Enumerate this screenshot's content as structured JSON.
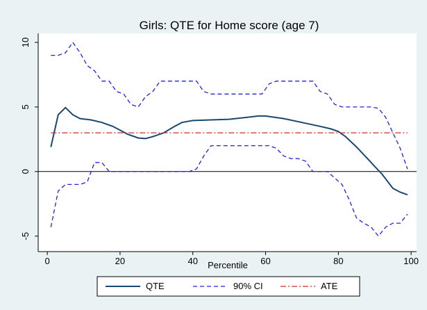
{
  "chart_data": {
    "type": "line",
    "title": "Girls: QTE for Home score (age 7)",
    "x_label": "Percentile",
    "xlim": [
      -2.5,
      101.5
    ],
    "xticks": [
      0,
      20,
      40,
      60,
      80,
      100
    ],
    "ylim": [
      -6.2,
      10.7
    ],
    "yticks": [
      -5,
      0,
      5,
      10
    ],
    "grid": false,
    "reference_line": 0,
    "legend": "bottom",
    "series": [
      {
        "name": "QTE",
        "color": "#1a476f",
        "dash": "solid",
        "x": [
          1,
          3,
          5,
          7,
          9,
          12,
          15,
          18,
          20,
          22,
          25,
          27,
          29,
          32,
          35,
          37,
          40,
          45,
          50,
          55,
          58,
          60,
          65,
          70,
          75,
          78,
          80,
          82,
          85,
          88,
          90,
          92,
          95,
          97,
          99
        ],
        "values": [
          1.9,
          4.4,
          4.95,
          4.4,
          4.1,
          4.0,
          3.8,
          3.5,
          3.2,
          2.9,
          2.6,
          2.55,
          2.7,
          3.0,
          3.5,
          3.8,
          3.95,
          4.0,
          4.05,
          4.2,
          4.3,
          4.3,
          4.1,
          3.8,
          3.5,
          3.3,
          3.1,
          2.7,
          1.9,
          1.0,
          0.4,
          -0.2,
          -1.3,
          -1.6,
          -1.8
        ]
      },
      {
        "name": "90% CI",
        "color": "#2020e0",
        "dash": "dashed",
        "x": [
          1,
          3,
          5,
          7,
          9,
          11,
          13,
          15,
          17,
          19,
          21,
          23,
          25,
          27,
          29,
          31,
          33,
          41,
          43,
          45,
          59,
          61,
          63,
          73,
          75,
          77,
          79,
          81,
          89,
          91,
          93,
          95,
          97,
          99
        ],
        "values": [
          9,
          9,
          9.2,
          10,
          9.2,
          8.2,
          7.8,
          7.0,
          7.0,
          6.2,
          6.0,
          5.2,
          5.0,
          5.8,
          6.2,
          7.0,
          7,
          7,
          6.2,
          6,
          6,
          6.8,
          7,
          7,
          6.2,
          6,
          5.2,
          5,
          5,
          4.9,
          4.2,
          3,
          1.8,
          0.2
        ]
      },
      {
        "name": "90% CI",
        "color": "#2020e0",
        "dash": "dashed",
        "in_legend": false,
        "x": [
          1,
          3,
          5,
          9,
          11,
          13,
          15,
          17,
          39,
          41,
          43,
          45,
          59,
          61,
          63,
          65,
          67,
          69,
          71,
          73,
          77,
          79,
          81,
          83,
          85,
          87,
          89,
          91,
          93,
          95,
          97,
          99
        ],
        "values": [
          -4.3,
          -1.5,
          -1.0,
          -1.0,
          -0.8,
          0.7,
          0.7,
          0,
          0,
          0.2,
          1.2,
          2.0,
          2,
          2,
          1.8,
          1.2,
          1.0,
          1.0,
          0.8,
          0,
          0,
          -0.5,
          -1.0,
          -2.2,
          -3.6,
          -4.0,
          -4.3,
          -5.0,
          -4.3,
          -4.0,
          -4.0,
          -3.3
        ]
      },
      {
        "name": "ATE",
        "color": "#d62728",
        "dash": "dashdot",
        "x": [
          1,
          99
        ],
        "values": [
          3.0,
          3.0
        ]
      }
    ]
  }
}
